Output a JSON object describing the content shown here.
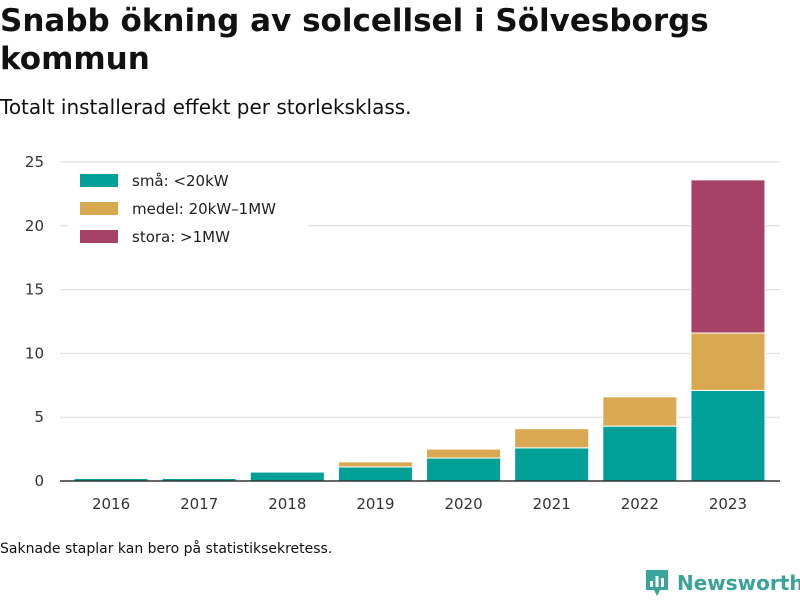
{
  "header": {
    "title": "Snabb ökning av solcellsel i Sölvesborgs kommun",
    "subtitle": "Totalt installerad effekt per storleksklass."
  },
  "footer": {
    "note": "Saknade staplar kan bero på statistiksekretess.",
    "brand": "Newsworthy"
  },
  "colors": {
    "small": "#00a097",
    "medium": "#d9a952",
    "large": "#a54265",
    "grid": "#d9d9d9",
    "axis": "#333333"
  },
  "chart_data": {
    "type": "bar",
    "stacked": true,
    "categories": [
      "2016",
      "2017",
      "2018",
      "2019",
      "2020",
      "2021",
      "2022",
      "2023"
    ],
    "series": [
      {
        "name": "små: <20kW",
        "color": "#00a097",
        "values": [
          0.2,
          0.2,
          0.7,
          1.1,
          1.8,
          2.6,
          4.3,
          7.1
        ]
      },
      {
        "name": "medel: 20kW–1MW",
        "color": "#d9a952",
        "values": [
          0,
          0,
          0,
          0.4,
          0.7,
          1.5,
          2.3,
          4.5
        ]
      },
      {
        "name": "stora: >1MW",
        "color": "#a54265",
        "values": [
          0,
          0,
          0,
          0,
          0,
          0,
          0,
          12.0
        ]
      }
    ],
    "ylim": [
      0,
      25
    ],
    "yticks": [
      0,
      5,
      10,
      15,
      20,
      25
    ],
    "grid": true,
    "legend_position": "top-left",
    "xlabel": "",
    "ylabel": ""
  }
}
